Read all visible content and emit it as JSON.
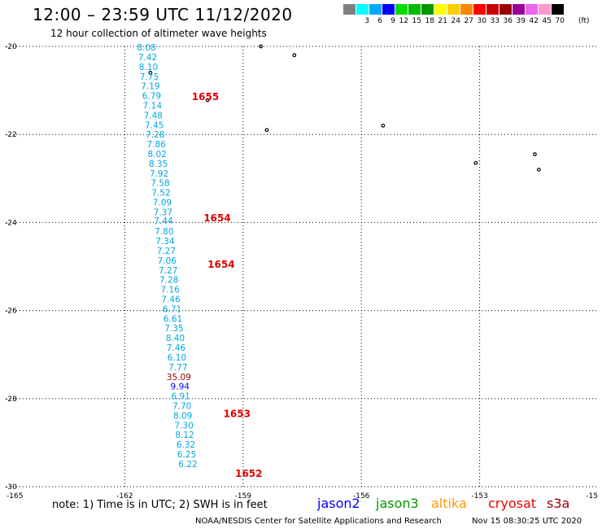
{
  "header": {
    "title": "12:00 – 23:59 UTC 11/12/2020",
    "subtitle": "12 hour collection of altimeter wave heights"
  },
  "legend": {
    "colors": [
      "#808080",
      "#00ffff",
      "#00aaff",
      "#0000ff",
      "#00dd00",
      "#00bb00",
      "#009900",
      "#ffff00",
      "#ffcc00",
      "#ff8800",
      "#ff0000",
      "#cc0000",
      "#990000",
      "#990099",
      "#ee66ee",
      "#ff99cc",
      "#000000"
    ],
    "labels": [
      "",
      "3",
      "6",
      "9",
      "12",
      "15",
      "18",
      "21",
      "24",
      "27",
      "30",
      "33",
      "36",
      "39",
      "42",
      "45",
      "70"
    ],
    "unit": "(ft)"
  },
  "chart_data": {
    "type": "scatter",
    "title": "12:00 – 23:59 UTC 11/12/2020",
    "subtitle": "12 hour collection of altimeter wave heights",
    "xlim": [
      -165,
      -150
    ],
    "ylim": [
      -30,
      -20
    ],
    "x_ticks": [
      "-165",
      "-162",
      "-159",
      "-156",
      "-153",
      "-15"
    ],
    "y_ticks": [
      "-20",
      "-22",
      "-24",
      "-26",
      "-28",
      "-30"
    ],
    "x_grid": [
      -162,
      -159,
      -156,
      -153
    ],
    "y_grid": [
      -20,
      -22,
      -24,
      -26,
      -28,
      -30
    ],
    "grid": true,
    "series": [
      {
        "name": "cryosat",
        "color": "#00a6e0",
        "points": [
          {
            "lon": -161.45,
            "lat": -20.02,
            "swh": "8.08",
            "color": "#00a6e0"
          },
          {
            "lon": -161.42,
            "lat": -20.24,
            "swh": "7.42",
            "color": "#00a6e0"
          },
          {
            "lon": -161.4,
            "lat": -20.46,
            "swh": "8.10",
            "color": "#00a6e0"
          },
          {
            "lon": -161.38,
            "lat": -20.68,
            "swh": "7.75",
            "color": "#00a6e0"
          },
          {
            "lon": -161.35,
            "lat": -20.9,
            "swh": "7.19",
            "color": "#00a6e0"
          },
          {
            "lon": -161.32,
            "lat": -21.12,
            "swh": "6.79",
            "color": "#00a6e0"
          },
          {
            "lon": -161.3,
            "lat": -21.34,
            "swh": "7.14",
            "color": "#00a6e0"
          },
          {
            "lon": -161.28,
            "lat": -21.56,
            "swh": "7.48",
            "color": "#00a6e0"
          },
          {
            "lon": -161.25,
            "lat": -21.78,
            "swh": "7.45",
            "color": "#00a6e0"
          },
          {
            "lon": -161.23,
            "lat": -22.0,
            "swh": "7.28",
            "color": "#00a6e0"
          },
          {
            "lon": -161.2,
            "lat": -22.22,
            "swh": "7.86",
            "color": "#00a6e0"
          },
          {
            "lon": -161.18,
            "lat": -22.44,
            "swh": "8.02",
            "color": "#00a6e0"
          },
          {
            "lon": -161.15,
            "lat": -22.66,
            "swh": "8.35",
            "color": "#00a6e0"
          },
          {
            "lon": -161.13,
            "lat": -22.88,
            "swh": "7.92",
            "color": "#00a6e0"
          },
          {
            "lon": -161.1,
            "lat": -23.1,
            "swh": "7.58",
            "color": "#00a6e0"
          },
          {
            "lon": -161.08,
            "lat": -23.32,
            "swh": "7.52",
            "color": "#00a6e0"
          },
          {
            "lon": -161.05,
            "lat": -23.54,
            "swh": "7.09",
            "color": "#00a6e0"
          },
          {
            "lon": -161.03,
            "lat": -23.76,
            "swh": "7.37",
            "color": "#00a6e0"
          },
          {
            "lon": -161.02,
            "lat": -23.96,
            "swh": "7.44",
            "color": "#00a6e0"
          },
          {
            "lon": -161.0,
            "lat": -24.2,
            "swh": "7.80",
            "color": "#00a6e0"
          },
          {
            "lon": -160.98,
            "lat": -24.42,
            "swh": "7.34",
            "color": "#00a6e0"
          },
          {
            "lon": -160.95,
            "lat": -24.64,
            "swh": "7.27",
            "color": "#00a6e0"
          },
          {
            "lon": -160.93,
            "lat": -24.86,
            "swh": "7.06",
            "color": "#00a6e0"
          },
          {
            "lon": -160.9,
            "lat": -25.08,
            "swh": "7.27",
            "color": "#00a6e0"
          },
          {
            "lon": -160.88,
            "lat": -25.3,
            "swh": "7.28",
            "color": "#00a6e0"
          },
          {
            "lon": -160.85,
            "lat": -25.52,
            "swh": "7.16",
            "color": "#00a6e0"
          },
          {
            "lon": -160.83,
            "lat": -25.74,
            "swh": "7.46",
            "color": "#00a6e0"
          },
          {
            "lon": -160.8,
            "lat": -25.96,
            "swh": "6.71",
            "color": "#00a6e0"
          },
          {
            "lon": -160.78,
            "lat": -26.18,
            "swh": "6.61",
            "color": "#00a6e0"
          },
          {
            "lon": -160.75,
            "lat": -26.4,
            "swh": "7.35",
            "color": "#00a6e0"
          },
          {
            "lon": -160.72,
            "lat": -26.62,
            "swh": "8.40",
            "color": "#00a6e0"
          },
          {
            "lon": -160.7,
            "lat": -26.84,
            "swh": "7.46",
            "color": "#00a6e0"
          },
          {
            "lon": -160.68,
            "lat": -27.06,
            "swh": "6.10",
            "color": "#00a6e0"
          },
          {
            "lon": -160.65,
            "lat": -27.28,
            "swh": "7.77",
            "color": "#00a6e0"
          },
          {
            "lon": -160.63,
            "lat": -27.5,
            "swh": "35.09",
            "color": "#990000"
          },
          {
            "lon": -160.6,
            "lat": -27.72,
            "swh": "9.94",
            "color": "#0000ff"
          },
          {
            "lon": -160.58,
            "lat": -27.94,
            "swh": "6.91",
            "color": "#00a6e0"
          },
          {
            "lon": -160.55,
            "lat": -28.16,
            "swh": "7.70",
            "color": "#00a6e0"
          },
          {
            "lon": -160.53,
            "lat": -28.38,
            "swh": "8.09",
            "color": "#00a6e0"
          },
          {
            "lon": -160.5,
            "lat": -28.6,
            "swh": "7.30",
            "color": "#00a6e0"
          },
          {
            "lon": -160.48,
            "lat": -28.82,
            "swh": "8.12",
            "color": "#00a6e0"
          },
          {
            "lon": -160.45,
            "lat": -29.04,
            "swh": "6.32",
            "color": "#00a6e0"
          },
          {
            "lon": -160.43,
            "lat": -29.26,
            "swh": "6.25",
            "color": "#00a6e0"
          },
          {
            "lon": -160.4,
            "lat": -29.48,
            "swh": "6.22",
            "color": "#00a6e0"
          }
        ]
      }
    ],
    "time_labels": [
      {
        "lon": -160.3,
        "lat": -21.15,
        "text": "1655"
      },
      {
        "lon": -160.0,
        "lat": -23.9,
        "text": "1654"
      },
      {
        "lon": -159.9,
        "lat": -24.95,
        "text": "1654"
      },
      {
        "lon": -159.5,
        "lat": -28.35,
        "text": "1653"
      },
      {
        "lon": -159.2,
        "lat": -29.7,
        "text": "1652"
      }
    ],
    "islands": [
      {
        "lon": -161.35,
        "lat": -20.6
      },
      {
        "lon": -159.9,
        "lat": -21.22
      },
      {
        "lon": -158.55,
        "lat": -20.0
      },
      {
        "lon": -157.7,
        "lat": -20.2
      },
      {
        "lon": -158.4,
        "lat": -21.9
      },
      {
        "lon": -155.45,
        "lat": -21.8
      },
      {
        "lon": -153.1,
        "lat": -22.65
      },
      {
        "lon": -151.6,
        "lat": -22.45
      },
      {
        "lon": -151.5,
        "lat": -22.8
      }
    ]
  },
  "footer": {
    "note": "note: 1) Time is in UTC; 2) SWH is in feet",
    "satellites": [
      {
        "name": "jason2",
        "color": "#0000ff"
      },
      {
        "name": "jason3",
        "color": "#009900"
      },
      {
        "name": "altika",
        "color": "#ff9900"
      },
      {
        "name": "cryosat",
        "color": "#ee0000"
      },
      {
        "name": "s3a",
        "color": "#990000"
      }
    ],
    "credit": "NOAA/NESDIS Center for Satellite Applications and Research",
    "timestamp": "Nov 15 08:30:25 UTC 2020"
  }
}
